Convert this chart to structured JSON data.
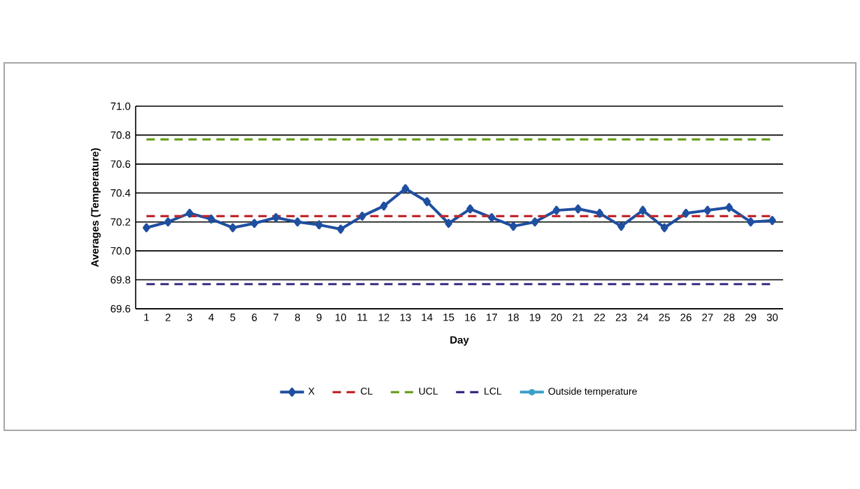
{
  "chart_data": {
    "type": "line",
    "xlabel": "Day",
    "ylabel": "Averages (Temperature)",
    "categories": [
      "1",
      "2",
      "3",
      "4",
      "5",
      "6",
      "7",
      "8",
      "9",
      "10",
      "11",
      "12",
      "13",
      "14",
      "15",
      "16",
      "17",
      "18",
      "19",
      "20",
      "21",
      "22",
      "23",
      "24",
      "25",
      "26",
      "27",
      "28",
      "29",
      "30"
    ],
    "ylim": [
      69.6,
      71.0
    ],
    "yticks": [
      {
        "value": 69.6,
        "label": "69.6"
      },
      {
        "value": 69.8,
        "label": "69.8"
      },
      {
        "value": 70,
        "label": "70.0"
      },
      {
        "value": 70.2,
        "label": "70.2"
      },
      {
        "value": 70.4,
        "label": "70.4"
      },
      {
        "value": 70.6,
        "label": "70.6"
      },
      {
        "value": 70.8,
        "label": "70.8"
      },
      {
        "value": 71,
        "label": "71.0"
      }
    ],
    "grid": "y",
    "legend": "bottom",
    "series": [
      {
        "name": "X",
        "color": "#1f4fa0",
        "marker": "diamond",
        "line_style": "solid",
        "values": [
          70.16,
          70.2,
          70.26,
          70.22,
          70.16,
          70.19,
          70.23,
          70.2,
          70.18,
          70.15,
          70.24,
          70.31,
          70.43,
          70.34,
          70.19,
          70.29,
          70.23,
          70.17,
          70.2,
          70.28,
          70.29,
          70.26,
          70.17,
          70.28,
          70.16,
          70.26,
          70.28,
          70.3,
          70.2,
          70.21
        ]
      },
      {
        "name": "CL",
        "color": "#c0282d",
        "marker": "none",
        "line_style": "dashed",
        "values": [
          70.24,
          70.24,
          70.24,
          70.24,
          70.24,
          70.24,
          70.24,
          70.24,
          70.24,
          70.24,
          70.24,
          70.24,
          70.24,
          70.24,
          70.24,
          70.24,
          70.24,
          70.24,
          70.24,
          70.24,
          70.24,
          70.24,
          70.24,
          70.24,
          70.24,
          70.24,
          70.24,
          70.24,
          70.24,
          70.24
        ]
      },
      {
        "name": "UCL",
        "color": "#6aa121",
        "marker": "none",
        "line_style": "dashed",
        "values": [
          70.77,
          70.77,
          70.77,
          70.77,
          70.77,
          70.77,
          70.77,
          70.77,
          70.77,
          70.77,
          70.77,
          70.77,
          70.77,
          70.77,
          70.77,
          70.77,
          70.77,
          70.77,
          70.77,
          70.77,
          70.77,
          70.77,
          70.77,
          70.77,
          70.77,
          70.77,
          70.77,
          70.77,
          70.77,
          70.77
        ]
      },
      {
        "name": "LCL",
        "color": "#3b2a80",
        "marker": "none",
        "line_style": "dashed",
        "values": [
          69.77,
          69.77,
          69.77,
          69.77,
          69.77,
          69.77,
          69.77,
          69.77,
          69.77,
          69.77,
          69.77,
          69.77,
          69.77,
          69.77,
          69.77,
          69.77,
          69.77,
          69.77,
          69.77,
          69.77,
          69.77,
          69.77,
          69.77,
          69.77,
          69.77,
          69.77,
          69.77,
          69.77,
          69.77,
          69.77
        ]
      },
      {
        "name": "Outside temperature",
        "color": "#3aa0c8",
        "marker": "star",
        "line_style": "solid",
        "values": [
          null,
          null,
          null,
          null,
          null,
          null,
          null,
          null,
          null,
          null,
          null,
          null,
          null,
          null,
          null,
          null,
          null,
          null,
          null,
          null,
          null,
          null,
          null,
          null,
          null,
          null,
          null,
          null,
          null,
          null
        ]
      }
    ]
  }
}
